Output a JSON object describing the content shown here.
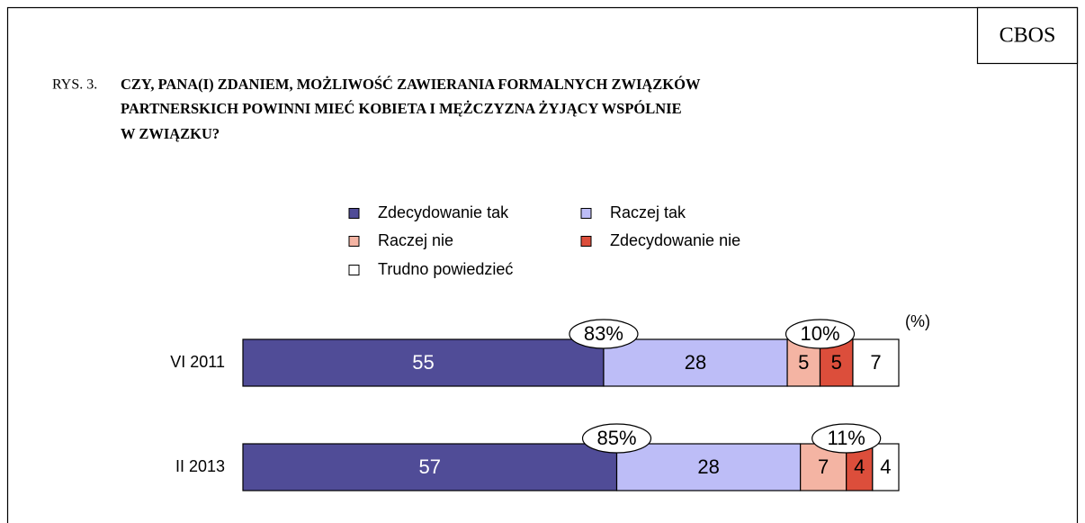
{
  "chart_data": {
    "type": "stacked-bar",
    "brand": "CBOS",
    "figure_label": "RYS. 3.",
    "title_lines": [
      "CZY, PANA(I) ZDANIEM, MOŻLIWOŚĆ ZAWIERANIA FORMALNYCH ZWIĄZKÓW",
      "PARTNERSKICH POWINNI MIEĆ KOBIETA I MĘŻCZYZNA ŻYJĄCY WSPÓLNIE",
      "W ZWIĄZKU?"
    ],
    "unit_label": "(%)",
    "categories": [
      "VI 2011",
      "II 2013"
    ],
    "series": [
      {
        "name": "Zdecydowanie tak",
        "color": "#504c97",
        "values": [
          55,
          57
        ]
      },
      {
        "name": "Raczej tak",
        "color": "#bdbdf7",
        "values": [
          28,
          28
        ]
      },
      {
        "name": "Raczej nie",
        "color": "#f4b4a3",
        "values": [
          5,
          7
        ]
      },
      {
        "name": "Zdecydowanie nie",
        "color": "#dc4e3b",
        "values": [
          5,
          4
        ]
      },
      {
        "name": "Trudno powiedzieć",
        "color": "#ffffff",
        "values": [
          7,
          4
        ]
      }
    ],
    "annotations": [
      [
        "83%",
        "10%"
      ],
      [
        "85%",
        "11%"
      ]
    ]
  }
}
